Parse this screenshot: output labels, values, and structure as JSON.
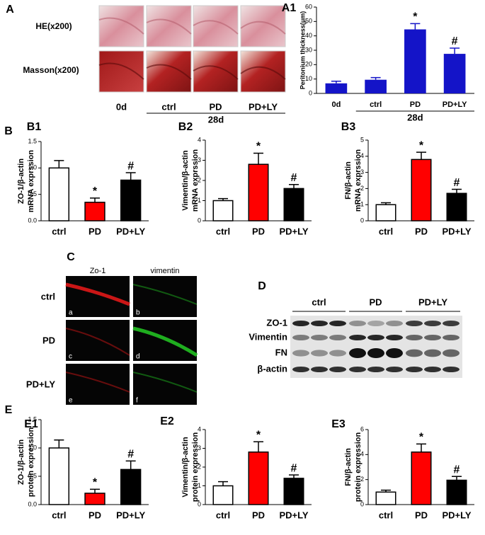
{
  "figure": {
    "A": {
      "label": "A",
      "rows": [
        "HE(x200)",
        "Masson(x200)"
      ],
      "columns": [
        "0d",
        "ctrl",
        "PD",
        "PD+LY"
      ],
      "group": "28d"
    },
    "B": {
      "label": "B"
    },
    "C": {
      "label": "C",
      "columns": [
        "Zo-1",
        "vimentin"
      ],
      "rows": [
        "ctrl",
        "PD",
        "PD+LY"
      ],
      "letters": [
        "a",
        "b",
        "c",
        "d",
        "e",
        "f"
      ]
    },
    "D": {
      "label": "D",
      "groups": [
        "ctrl",
        "PD",
        "PD+LY"
      ],
      "rows": [
        "ZO-1",
        "Vimentin",
        "FN",
        "β-actin"
      ]
    },
    "E": {
      "label": "E"
    }
  },
  "chart_data": [
    {
      "type": "bar",
      "label": "A1",
      "ylabel": [
        "Peritonium thickness(μm)"
      ],
      "categories": [
        "0d",
        "ctrl",
        "PD",
        "PD+LY"
      ],
      "group_label": "28d",
      "values": [
        7,
        9.5,
        44.5,
        27.5
      ],
      "errors": [
        1.5,
        1.5,
        4,
        4
      ],
      "annotations": [
        null,
        null,
        "*",
        "#"
      ],
      "color": "#1414c8",
      "ylim": [
        0,
        60
      ],
      "yticks": [
        0,
        10,
        20,
        30,
        40,
        50,
        60
      ]
    },
    {
      "type": "bar",
      "label": "B1",
      "ylabel": [
        "ZO-1/β-actin",
        "mRNA exprssion"
      ],
      "categories": [
        "ctrl",
        "PD",
        "PD+LY"
      ],
      "values": [
        1.0,
        0.35,
        0.77
      ],
      "errors": [
        0.14,
        0.08,
        0.14
      ],
      "annotations": [
        null,
        "*",
        "#"
      ],
      "colors": [
        "#ffffff",
        "#ff0000",
        "#000000"
      ],
      "ylim": [
        0,
        1.5
      ],
      "yticks": [
        {
          "value": 0,
          "label": "0.0"
        },
        {
          "value": 0.5,
          "label": "0.5"
        },
        {
          "value": 1,
          "label": "1.0"
        },
        {
          "value": 1.5,
          "label": "1.5"
        }
      ]
    },
    {
      "type": "bar",
      "label": "B2",
      "ylabel": [
        "Vimentin/β-actin",
        "mRNA exprssion"
      ],
      "categories": [
        "ctrl",
        "PD",
        "PD+LY"
      ],
      "values": [
        1.0,
        2.8,
        1.6
      ],
      "errors": [
        0.1,
        0.55,
        0.2
      ],
      "annotations": [
        null,
        "*",
        "#"
      ],
      "colors": [
        "#ffffff",
        "#ff0000",
        "#000000"
      ],
      "ylim": [
        0,
        4
      ],
      "yticks": [
        0,
        1,
        2,
        3,
        4
      ]
    },
    {
      "type": "bar",
      "label": "B3",
      "ylabel": [
        "FN/β-actin",
        "mRNA exprssion"
      ],
      "categories": [
        "ctrl",
        "PD",
        "PD+LY"
      ],
      "values": [
        1.0,
        3.8,
        1.7
      ],
      "errors": [
        0.12,
        0.45,
        0.25
      ],
      "annotations": [
        null,
        "*",
        "#"
      ],
      "colors": [
        "#ffffff",
        "#ff0000",
        "#000000"
      ],
      "ylim": [
        0,
        5
      ],
      "yticks": [
        0,
        1,
        2,
        3,
        4,
        5
      ]
    },
    {
      "type": "bar",
      "label": "E1",
      "ylabel": [
        "ZO-1/β-actin",
        "protein expression"
      ],
      "categories": [
        "ctrl",
        "PD",
        "PD+LY"
      ],
      "values": [
        1.0,
        0.2,
        0.62
      ],
      "errors": [
        0.14,
        0.07,
        0.15
      ],
      "annotations": [
        null,
        "*",
        "#"
      ],
      "colors": [
        "#ffffff",
        "#ff0000",
        "#000000"
      ],
      "ylim": [
        0,
        1.5
      ],
      "yticks": [
        {
          "value": 0,
          "label": "0.0"
        },
        {
          "value": 0.5,
          "label": "0.5"
        },
        {
          "value": 1,
          "label": "1.0"
        },
        {
          "value": 1.5,
          "label": "1.5"
        }
      ]
    },
    {
      "type": "bar",
      "label": "E2",
      "ylabel": [
        "Vimentin/β-actin",
        "protein expression"
      ],
      "categories": [
        "ctrl",
        "PD",
        "PD+LY"
      ],
      "values": [
        1.0,
        2.8,
        1.4
      ],
      "errors": [
        0.22,
        0.55,
        0.18
      ],
      "annotations": [
        null,
        "*",
        "#"
      ],
      "colors": [
        "#ffffff",
        "#ff0000",
        "#000000"
      ],
      "ylim": [
        0,
        4
      ],
      "yticks": [
        0,
        1,
        2,
        3,
        4
      ]
    },
    {
      "type": "bar",
      "label": "E3",
      "ylabel": [
        "FN/β-actin",
        "protein expression"
      ],
      "categories": [
        "ctrl",
        "PD",
        "PD+LY"
      ],
      "values": [
        1.0,
        4.2,
        1.95
      ],
      "errors": [
        0.15,
        0.65,
        0.3
      ],
      "annotations": [
        null,
        "*",
        "#"
      ],
      "colors": [
        "#ffffff",
        "#ff0000",
        "#000000"
      ],
      "ylim": [
        0,
        6
      ],
      "yticks": [
        0,
        2,
        4,
        6
      ]
    }
  ]
}
